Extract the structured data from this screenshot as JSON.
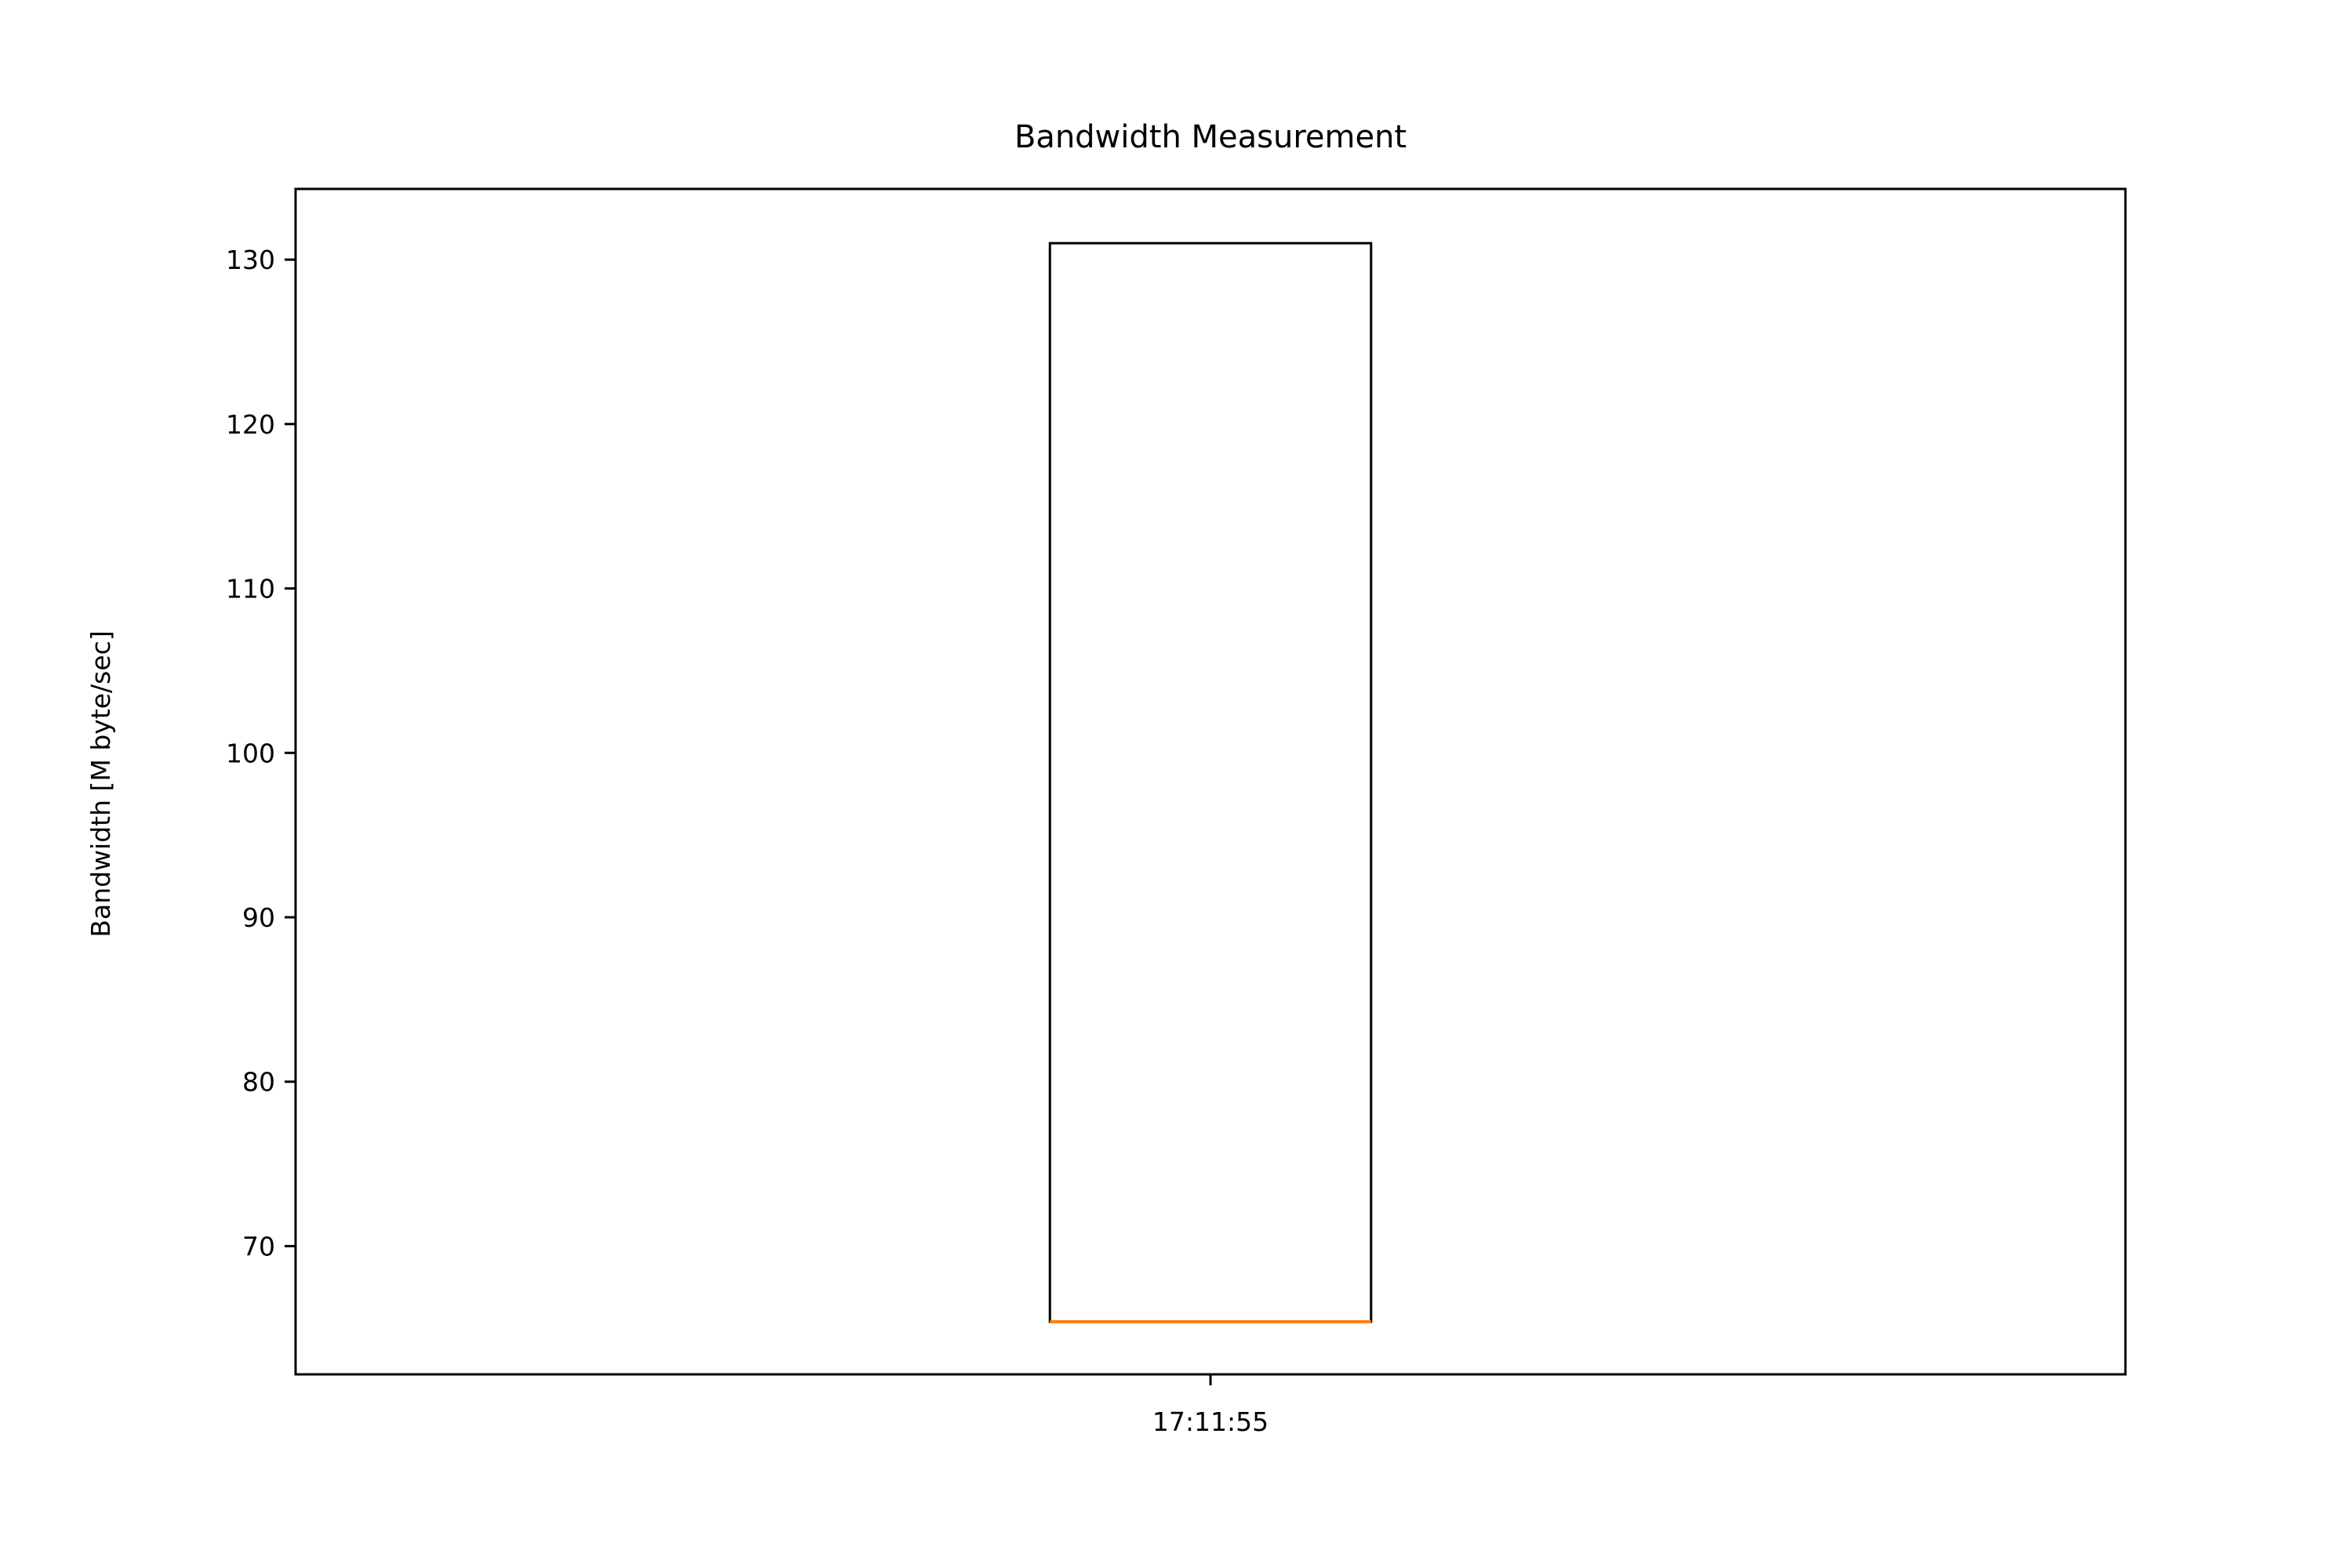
{
  "chart_data": {
    "type": "box",
    "title": "Bandwidth Measurement",
    "xlabel": "",
    "ylabel": "Bandwidth [M byte/sec]",
    "categories": [
      "17:11:55"
    ],
    "boxes": [
      {
        "category": "17:11:55",
        "q1": 65.4,
        "median": 65.4,
        "q3": 131.0,
        "whisker_low": 65.4,
        "whisker_high": 131.0
      }
    ],
    "ylim": [
      62.2,
      134.3
    ],
    "yticks": [
      70,
      80,
      90,
      100,
      110,
      120,
      130
    ],
    "grid": false,
    "colors": {
      "box": "#000000",
      "median": "#ff7f0e"
    }
  }
}
